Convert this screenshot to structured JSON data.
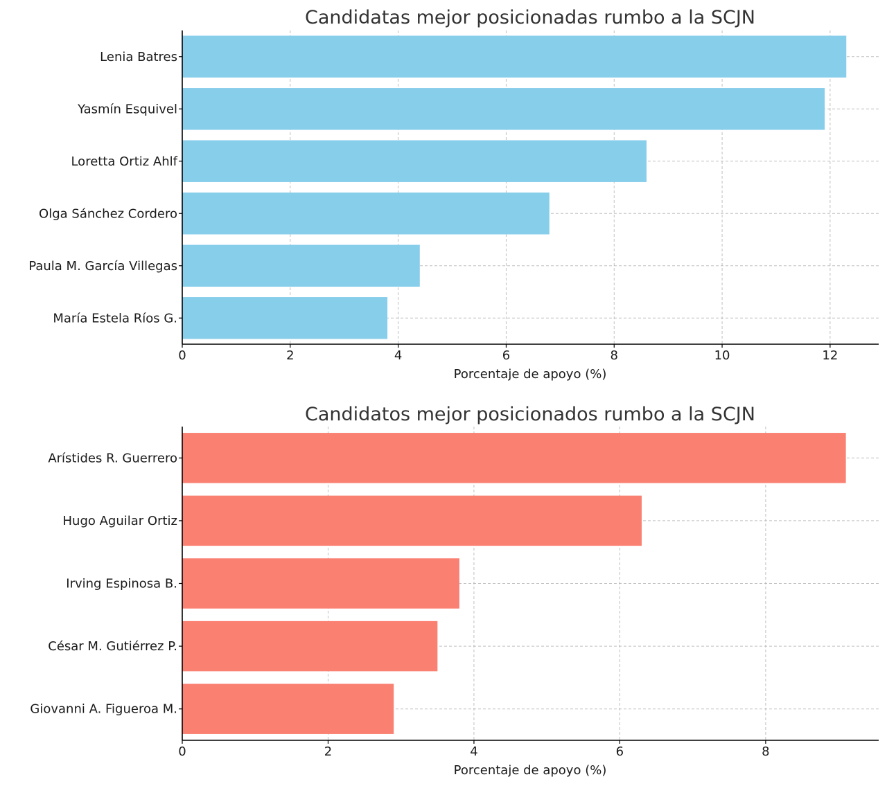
{
  "chart_data": [
    {
      "type": "bar",
      "orientation": "horizontal",
      "title": "Candidatas mejor posicionadas rumbo a la SCJN",
      "xlabel": "Porcentaje de apoyo (%)",
      "ylabel": "",
      "categories": [
        "Lenia Batres",
        "Yasmín Esquivel",
        "Loretta Ortiz Ahlf",
        "Olga Sánchez Cordero",
        "Paula M. García Villegas",
        "María Estela Ríos G."
      ],
      "values": [
        12.3,
        11.9,
        8.6,
        6.8,
        4.4,
        3.8
      ],
      "xlim": [
        0,
        12.9
      ],
      "xticks": [
        "0",
        "2",
        "4",
        "6",
        "8",
        "10",
        "12"
      ],
      "color": "#87CEEB",
      "grid": true
    },
    {
      "type": "bar",
      "orientation": "horizontal",
      "title": "Candidatos mejor posicionados rumbo a la SCJN",
      "xlabel": "Porcentaje de apoyo (%)",
      "ylabel": "",
      "categories": [
        "Arístides R. Guerrero",
        "Hugo Aguilar Ortiz",
        "Irving Espinosa B.",
        "César M. Gutiérrez P.",
        "Giovanni A. Figueroa M."
      ],
      "values": [
        9.1,
        6.3,
        3.8,
        3.5,
        2.9
      ],
      "xlim": [
        0,
        9.55
      ],
      "xticks": [
        "0",
        "2",
        "4",
        "6",
        "8"
      ],
      "color": "#FA8072",
      "grid": true
    }
  ]
}
